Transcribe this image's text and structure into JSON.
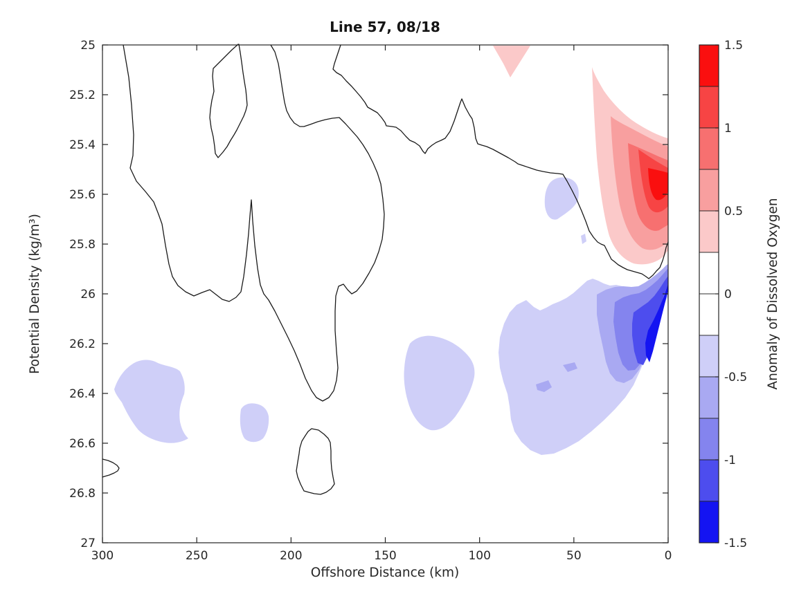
{
  "figure": {
    "title": "Line 57, 08/18",
    "x_axis": {
      "label": "Offshore Distance (km)",
      "lim": [
        300,
        0
      ],
      "ticks": [
        {
          "v": 300,
          "label": "300"
        },
        {
          "v": 250,
          "label": "250"
        },
        {
          "v": 200,
          "label": "200"
        },
        {
          "v": 150,
          "label": "150"
        },
        {
          "v": 100,
          "label": "100"
        },
        {
          "v": 50,
          "label": "50"
        },
        {
          "v": 0,
          "label": "0"
        }
      ]
    },
    "y_axis": {
      "label": "Potential Density (kg/m³)",
      "lim": [
        25,
        27
      ],
      "ticks": [
        {
          "v": 25,
          "label": "25"
        },
        {
          "v": 25.2,
          "label": "25.2"
        },
        {
          "v": 25.4,
          "label": "25.4"
        },
        {
          "v": 25.6,
          "label": "25.6"
        },
        {
          "v": 25.8,
          "label": "25.8"
        },
        {
          "v": 26,
          "label": "26"
        },
        {
          "v": 26.2,
          "label": "26.2"
        },
        {
          "v": 26.4,
          "label": "26.4"
        },
        {
          "v": 26.6,
          "label": "26.6"
        },
        {
          "v": 26.8,
          "label": "26.8"
        },
        {
          "v": 27,
          "label": "27"
        }
      ]
    },
    "colorbar": {
      "label": "Anomaly of Dissolved Oxygen",
      "lim": [
        1.5,
        -1.5
      ],
      "ticks": [
        {
          "v": 1.5,
          "label": "1.5"
        },
        {
          "v": 1,
          "label": "1"
        },
        {
          "v": 0.5,
          "label": "0.5"
        },
        {
          "v": 0,
          "label": "0"
        },
        {
          "v": -0.5,
          "label": "-0.5"
        },
        {
          "v": -1,
          "label": "-1"
        },
        {
          "v": -1.5,
          "label": "-1.5"
        }
      ],
      "cell_colors_top_to_bottom": [
        "#fa0f0f",
        "#f74444",
        "#f77070",
        "#f89f9f",
        "#fbc9c9",
        "#ffffff",
        "#ffffff",
        "#cfcff8",
        "#a9a9f2",
        "#8484ee",
        "#4d4dee",
        "#1414f2"
      ]
    }
  },
  "chart_data": {
    "type": "filled_contour",
    "title": "Line 57, 08/18",
    "xlabel": "Offshore Distance (km)",
    "ylabel": "Potential Density (kg/m³)",
    "colorbar_label": "Anomaly of Dissolved Oxygen",
    "x_range_km": [
      300,
      0
    ],
    "x_direction": "reversed (300 km offshore at left, 0 km coast at right)",
    "y_range_kg_m3": [
      25,
      27
    ],
    "y_direction": "25 at top, 27 at bottom",
    "contour_levels": [
      -1.5,
      -1.25,
      -1.0,
      -0.75,
      -0.5,
      -0.25,
      0,
      0.25,
      0.5,
      0.75,
      1.0,
      1.25,
      1.5
    ],
    "colormap": {
      "negative": [
        "#cfcff8",
        "#a9a9f2",
        "#8484ee",
        "#4d4dee",
        "#1414f2"
      ],
      "near_zero": "#ffffff",
      "positive": [
        "#fbc9c9",
        "#f89f9f",
        "#f77070",
        "#f74444",
        "#fa0f0f"
      ]
    },
    "features": [
      {
        "name": "positive anomaly plume",
        "sign": "+",
        "x_km": [
          0,
          40
        ],
        "density": [
          25.1,
          25.95
        ],
        "peak": "> +1.25 at 0-10 km near density 25.5-25.6, nested shades 0.25 to 1.5"
      },
      {
        "name": "surface positive patch",
        "sign": "+",
        "x_km": [
          74,
          93
        ],
        "density": [
          25.0,
          25.15
        ],
        "peak": "0.25 to 0.5"
      },
      {
        "name": "nearshore negative core",
        "sign": "-",
        "x_km": [
          0,
          15
        ],
        "density": [
          25.95,
          26.5
        ],
        "peak": "< -1.25 near 0-8 km around density 26.1-26.4, nested shades -0.25 to -1.5"
      },
      {
        "name": "main negative region",
        "sign": "-",
        "x_km": [
          25,
          90
        ],
        "density": [
          25.85,
          26.65
        ],
        "peak": "-0.25 to -0.5 with -0.5 to -0.75 islands near 50-55 km, 26.3-26.35"
      },
      {
        "name": "offshore negative blob",
        "sign": "-",
        "x_km": [
          255,
          295
        ],
        "density": [
          26.25,
          26.6
        ],
        "peak": "-0.25 to -0.5"
      },
      {
        "name": "small negative blob",
        "sign": "-",
        "x_km": [
          212,
          228
        ],
        "density": [
          26.45,
          26.6
        ],
        "peak": "-0.25 to -0.5"
      },
      {
        "name": "mid-shelf negative blob",
        "sign": "-",
        "x_km": [
          102,
          140
        ],
        "density": [
          26.17,
          26.55
        ],
        "peak": "-0.25 to -0.5"
      },
      {
        "name": "small upper negative lobe",
        "sign": "-",
        "x_km": [
          47,
          66
        ],
        "density": [
          25.53,
          25.71
        ],
        "peak": "-0.25 to -0.5"
      }
    ],
    "zero_contour_lines": [
      "long winding zero line from top at ~288 km descending to ~26.0 near 265 km, spike up to 25.62 at ~221 km, tongue down to 26.43 at ~183 km, returning to top at ~211 km",
      "upper zero line from top at ~174 km running east near 25.3-25.5, descending at ~25 km to 25.95 and rising to the coast at ~25.8",
      "closed hairpin from top edge near 228 km down to 25.45",
      "closed loop near 177-197 km between 26.54 and 26.81",
      "small arc on left axis near 26.66-26.74"
    ],
    "grid": false,
    "axes_box": true,
    "tick_direction": "in"
  }
}
